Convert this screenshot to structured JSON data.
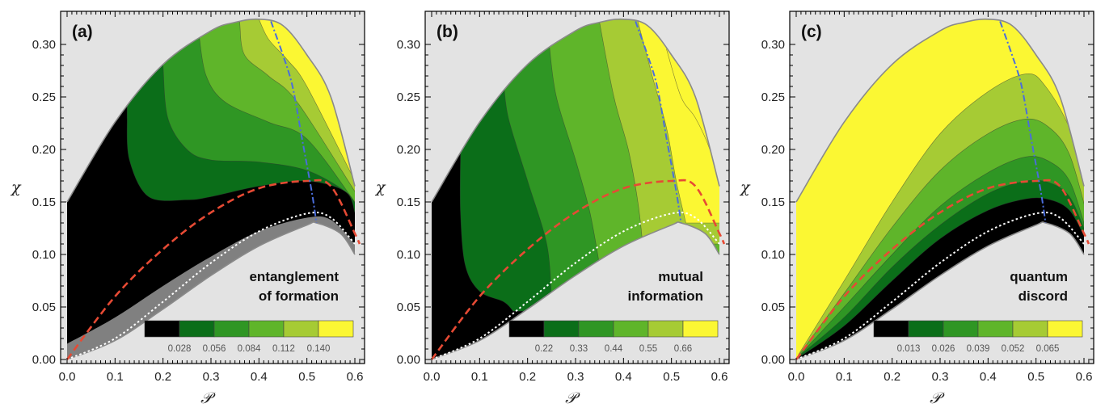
{
  "chart_data": [
    {
      "type": "contour",
      "panel_label": "(a)",
      "corner_label": [
        "entanglement",
        "of formation"
      ],
      "xlabel": "𝒫",
      "ylabel": "χ",
      "xlim": [
        0,
        0.62
      ],
      "ylim": [
        0,
        0.33
      ],
      "xticks": [
        "0.0",
        "0.1",
        "0.2",
        "0.3",
        "0.4",
        "0.5",
        "0.6"
      ],
      "yticks": [
        "0.00",
        "0.05",
        "0.10",
        "0.15",
        "0.20",
        "0.25",
        "0.30"
      ],
      "legend_ticks": [
        "0.028",
        "0.056",
        "0.084",
        "0.112",
        "0.140"
      ],
      "level_colors": [
        "#000000",
        "#0b6e19",
        "#2f9624",
        "#5fb52a",
        "#a6cb34",
        "#fbf733"
      ],
      "below_threshold_color": "#808080",
      "boundary": {
        "upper": [
          [
            0,
            0.15
          ],
          [
            0.1,
            0.226
          ],
          [
            0.2,
            0.281
          ],
          [
            0.3,
            0.313
          ],
          [
            0.35,
            0.321
          ],
          [
            0.4,
            0.324
          ],
          [
            0.45,
            0.318
          ],
          [
            0.5,
            0.29
          ],
          [
            0.55,
            0.25
          ],
          [
            0.6,
            0.165
          ]
        ],
        "lower": [
          [
            0,
            0
          ],
          [
            0.1,
            0.018
          ],
          [
            0.2,
            0.048
          ],
          [
            0.3,
            0.08
          ],
          [
            0.4,
            0.108
          ],
          [
            0.5,
            0.128
          ],
          [
            0.52,
            0.13
          ],
          [
            0.57,
            0.12
          ],
          [
            0.6,
            0.1
          ]
        ]
      },
      "contours": [
        [
          [
            0.125,
            0.23
          ],
          [
            0.13,
            0.19
          ],
          [
            0.17,
            0.155
          ],
          [
            0.25,
            0.152
          ],
          [
            0.3,
            0.155
          ],
          [
            0.4,
            0.165
          ],
          [
            0.5,
            0.17
          ],
          [
            0.58,
            0.16
          ],
          [
            0.6,
            0.14
          ]
        ],
        [
          [
            0.2,
            0.28
          ],
          [
            0.21,
            0.23
          ],
          [
            0.25,
            0.2
          ],
          [
            0.3,
            0.19
          ],
          [
            0.4,
            0.188
          ],
          [
            0.5,
            0.18
          ],
          [
            0.58,
            0.16
          ],
          [
            0.605,
            0.145
          ]
        ],
        [
          [
            0.275,
            0.309
          ],
          [
            0.29,
            0.27
          ],
          [
            0.33,
            0.245
          ],
          [
            0.42,
            0.226
          ],
          [
            0.5,
            0.21
          ],
          [
            0.6,
            0.15
          ]
        ],
        [
          [
            0.36,
            0.32
          ],
          [
            0.37,
            0.29
          ],
          [
            0.42,
            0.27
          ],
          [
            0.48,
            0.245
          ],
          [
            0.6,
            0.16
          ]
        ],
        [
          [
            0.4,
            0.324
          ],
          [
            0.42,
            0.305
          ],
          [
            0.46,
            0.285
          ],
          [
            0.5,
            0.26
          ],
          [
            0.6,
            0.17
          ]
        ]
      ],
      "grey_region_top": [
        [
          0,
          0.015
        ],
        [
          0.1,
          0.04
        ],
        [
          0.2,
          0.07
        ],
        [
          0.3,
          0.098
        ],
        [
          0.4,
          0.122
        ],
        [
          0.5,
          0.135
        ],
        [
          0.55,
          0.133
        ],
        [
          0.6,
          0.11
        ]
      ],
      "lines": {
        "blue_dashdot": [
          [
            0.425,
            0.322
          ],
          [
            0.45,
            0.29
          ],
          [
            0.47,
            0.26
          ],
          [
            0.49,
            0.21
          ],
          [
            0.51,
            0.16
          ],
          [
            0.52,
            0.13
          ]
        ],
        "red_dashed": [
          [
            0,
            0
          ],
          [
            0.1,
            0.06
          ],
          [
            0.2,
            0.105
          ],
          [
            0.3,
            0.14
          ],
          [
            0.4,
            0.163
          ],
          [
            0.5,
            0.17
          ],
          [
            0.55,
            0.165
          ],
          [
            0.6,
            0.12
          ],
          [
            0.61,
            0.11
          ]
        ],
        "white_dotted": [
          [
            0,
            0
          ],
          [
            0.1,
            0.02
          ],
          [
            0.2,
            0.055
          ],
          [
            0.3,
            0.092
          ],
          [
            0.4,
            0.122
          ],
          [
            0.5,
            0.139
          ],
          [
            0.55,
            0.135
          ],
          [
            0.6,
            0.11
          ]
        ]
      }
    },
    {
      "type": "contour",
      "panel_label": "(b)",
      "corner_label": [
        "mutual",
        "information"
      ],
      "xlabel": "𝒫",
      "ylabel": "χ",
      "xlim": [
        0,
        0.62
      ],
      "ylim": [
        0,
        0.33
      ],
      "xticks": [
        "0.0",
        "0.1",
        "0.2",
        "0.3",
        "0.4",
        "0.5",
        "0.6"
      ],
      "yticks": [
        "0.00",
        "0.05",
        "0.10",
        "0.15",
        "0.20",
        "0.25",
        "0.30"
      ],
      "legend_ticks": [
        "0.22",
        "0.33",
        "0.44",
        "0.55",
        "0.66"
      ],
      "level_colors": [
        "#000000",
        "#0b6e19",
        "#2f9624",
        "#5fb52a",
        "#a6cb34",
        "#fbf733"
      ],
      "below_threshold_color": null,
      "boundary": {
        "upper": [
          [
            0,
            0.15
          ],
          [
            0.1,
            0.226
          ],
          [
            0.2,
            0.281
          ],
          [
            0.3,
            0.313
          ],
          [
            0.35,
            0.321
          ],
          [
            0.4,
            0.324
          ],
          [
            0.45,
            0.318
          ],
          [
            0.5,
            0.29
          ],
          [
            0.55,
            0.25
          ],
          [
            0.6,
            0.165
          ]
        ],
        "lower": [
          [
            0,
            0
          ],
          [
            0.1,
            0.018
          ],
          [
            0.2,
            0.048
          ],
          [
            0.3,
            0.08
          ],
          [
            0.4,
            0.108
          ],
          [
            0.5,
            0.128
          ],
          [
            0.52,
            0.13
          ],
          [
            0.57,
            0.12
          ],
          [
            0.6,
            0.1
          ]
        ]
      },
      "contours": [
        [
          [
            0.06,
            0.194
          ],
          [
            0.06,
            0.14
          ],
          [
            0.07,
            0.09
          ],
          [
            0.1,
            0.065
          ],
          [
            0.15,
            0.055
          ],
          [
            0.17,
            0.046
          ]
        ],
        [
          [
            0.15,
            0.266
          ],
          [
            0.16,
            0.23
          ],
          [
            0.2,
            0.17
          ],
          [
            0.24,
            0.11
          ],
          [
            0.25,
            0.06
          ]
        ],
        [
          [
            0.245,
            0.3
          ],
          [
            0.26,
            0.25
          ],
          [
            0.3,
            0.19
          ],
          [
            0.33,
            0.14
          ],
          [
            0.35,
            0.09
          ]
        ],
        [
          [
            0.35,
            0.321
          ],
          [
            0.38,
            0.25
          ],
          [
            0.41,
            0.2
          ],
          [
            0.43,
            0.15
          ],
          [
            0.44,
            0.11
          ]
        ],
        [
          [
            0.43,
            0.322
          ],
          [
            0.46,
            0.27
          ],
          [
            0.49,
            0.22
          ],
          [
            0.51,
            0.17
          ],
          [
            0.53,
            0.13
          ]
        ],
        [
          [
            0.49,
            0.295
          ],
          [
            0.52,
            0.25
          ],
          [
            0.55,
            0.23
          ],
          [
            0.58,
            0.2
          ],
          [
            0.6,
            0.165
          ]
        ]
      ],
      "grey_region_top": null,
      "lines": {
        "blue_dashdot": [
          [
            0.425,
            0.322
          ],
          [
            0.45,
            0.29
          ],
          [
            0.47,
            0.26
          ],
          [
            0.49,
            0.21
          ],
          [
            0.51,
            0.16
          ],
          [
            0.52,
            0.13
          ]
        ],
        "red_dashed": [
          [
            0,
            0
          ],
          [
            0.1,
            0.06
          ],
          [
            0.2,
            0.105
          ],
          [
            0.3,
            0.14
          ],
          [
            0.4,
            0.163
          ],
          [
            0.5,
            0.17
          ],
          [
            0.55,
            0.165
          ],
          [
            0.6,
            0.12
          ],
          [
            0.61,
            0.11
          ]
        ],
        "white_dotted": [
          [
            0,
            0
          ],
          [
            0.1,
            0.02
          ],
          [
            0.2,
            0.055
          ],
          [
            0.3,
            0.092
          ],
          [
            0.4,
            0.122
          ],
          [
            0.5,
            0.139
          ],
          [
            0.55,
            0.135
          ],
          [
            0.6,
            0.11
          ]
        ]
      }
    },
    {
      "type": "contour",
      "panel_label": "(c)",
      "corner_label": [
        "quantum",
        "discord"
      ],
      "xlabel": "𝒫",
      "ylabel": "χ",
      "xlim": [
        0,
        0.62
      ],
      "ylim": [
        0,
        0.33
      ],
      "xticks": [
        "0.0",
        "0.1",
        "0.2",
        "0.3",
        "0.4",
        "0.5",
        "0.6"
      ],
      "yticks": [
        "0.00",
        "0.05",
        "0.10",
        "0.15",
        "0.20",
        "0.25",
        "0.30"
      ],
      "legend_ticks": [
        "0.013",
        "0.026",
        "0.039",
        "0.052",
        "0.065"
      ],
      "level_colors": [
        "#000000",
        "#0b6e19",
        "#2f9624",
        "#5fb52a",
        "#a6cb34",
        "#fbf733"
      ],
      "below_threshold_color": null,
      "boundary": {
        "upper": [
          [
            0,
            0.15
          ],
          [
            0.1,
            0.226
          ],
          [
            0.2,
            0.281
          ],
          [
            0.3,
            0.313
          ],
          [
            0.35,
            0.321
          ],
          [
            0.4,
            0.324
          ],
          [
            0.45,
            0.318
          ],
          [
            0.5,
            0.29
          ],
          [
            0.55,
            0.25
          ],
          [
            0.6,
            0.165
          ]
        ],
        "lower": [
          [
            0,
            0
          ],
          [
            0.1,
            0.018
          ],
          [
            0.2,
            0.048
          ],
          [
            0.3,
            0.08
          ],
          [
            0.4,
            0.108
          ],
          [
            0.5,
            0.128
          ],
          [
            0.52,
            0.13
          ],
          [
            0.57,
            0.12
          ],
          [
            0.6,
            0.1
          ]
        ]
      },
      "contours": [
        [
          [
            0.005,
            0.005
          ],
          [
            0.1,
            0.075
          ],
          [
            0.2,
            0.15
          ],
          [
            0.3,
            0.215
          ],
          [
            0.4,
            0.255
          ],
          [
            0.48,
            0.272
          ],
          [
            0.52,
            0.26
          ],
          [
            0.57,
            0.22
          ],
          [
            0.61,
            0.16
          ]
        ],
        [
          [
            0.005,
            0.004
          ],
          [
            0.1,
            0.063
          ],
          [
            0.2,
            0.126
          ],
          [
            0.3,
            0.18
          ],
          [
            0.4,
            0.215
          ],
          [
            0.48,
            0.229
          ],
          [
            0.53,
            0.22
          ],
          [
            0.57,
            0.195
          ],
          [
            0.605,
            0.14
          ]
        ],
        [
          [
            0.005,
            0.003
          ],
          [
            0.1,
            0.05
          ],
          [
            0.2,
            0.1
          ],
          [
            0.3,
            0.146
          ],
          [
            0.4,
            0.178
          ],
          [
            0.48,
            0.193
          ],
          [
            0.53,
            0.188
          ],
          [
            0.57,
            0.17
          ],
          [
            0.6,
            0.13
          ]
        ],
        [
          [
            0.005,
            0.003
          ],
          [
            0.1,
            0.04
          ],
          [
            0.2,
            0.088
          ],
          [
            0.3,
            0.128
          ],
          [
            0.4,
            0.158
          ],
          [
            0.48,
            0.17
          ],
          [
            0.53,
            0.168
          ],
          [
            0.57,
            0.155
          ],
          [
            0.6,
            0.125
          ]
        ],
        [
          [
            0.005,
            0.002
          ],
          [
            0.1,
            0.032
          ],
          [
            0.2,
            0.075
          ],
          [
            0.3,
            0.115
          ],
          [
            0.4,
            0.142
          ],
          [
            0.48,
            0.153
          ],
          [
            0.53,
            0.152
          ],
          [
            0.57,
            0.142
          ],
          [
            0.6,
            0.118
          ]
        ]
      ],
      "grey_region_top": null,
      "lines": {
        "blue_dashdot": [
          [
            0.425,
            0.322
          ],
          [
            0.45,
            0.29
          ],
          [
            0.47,
            0.26
          ],
          [
            0.49,
            0.21
          ],
          [
            0.51,
            0.16
          ],
          [
            0.52,
            0.13
          ]
        ],
        "red_dashed": [
          [
            0,
            0
          ],
          [
            0.1,
            0.06
          ],
          [
            0.2,
            0.105
          ],
          [
            0.3,
            0.14
          ],
          [
            0.4,
            0.163
          ],
          [
            0.5,
            0.17
          ],
          [
            0.55,
            0.165
          ],
          [
            0.6,
            0.12
          ],
          [
            0.61,
            0.11
          ]
        ],
        "white_dotted": [
          [
            0,
            0
          ],
          [
            0.1,
            0.02
          ],
          [
            0.2,
            0.055
          ],
          [
            0.3,
            0.092
          ],
          [
            0.4,
            0.122
          ],
          [
            0.5,
            0.139
          ],
          [
            0.55,
            0.135
          ],
          [
            0.6,
            0.11
          ]
        ]
      }
    }
  ]
}
